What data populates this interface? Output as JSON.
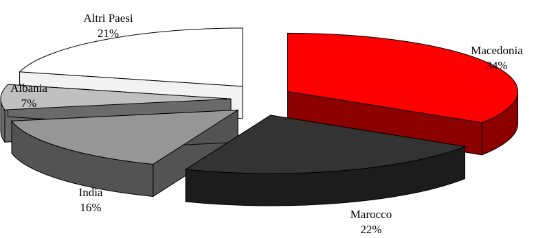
{
  "chart_data": {
    "type": "pie",
    "three_d": true,
    "exploded": true,
    "categories": [
      "Macedonia",
      "Marocco",
      "India",
      "Albania",
      "Altri Paesi"
    ],
    "values": [
      34,
      22,
      16,
      7,
      21
    ],
    "value_labels": [
      "34%",
      "22%",
      "16%",
      "7%",
      "21%"
    ],
    "colors": {
      "Macedonia": "#ff0000",
      "Marocco": "#333333",
      "India": "#969696",
      "Albania": "#c0c0c0",
      "Altri Paesi": "#ffffff"
    },
    "legend": "none"
  }
}
